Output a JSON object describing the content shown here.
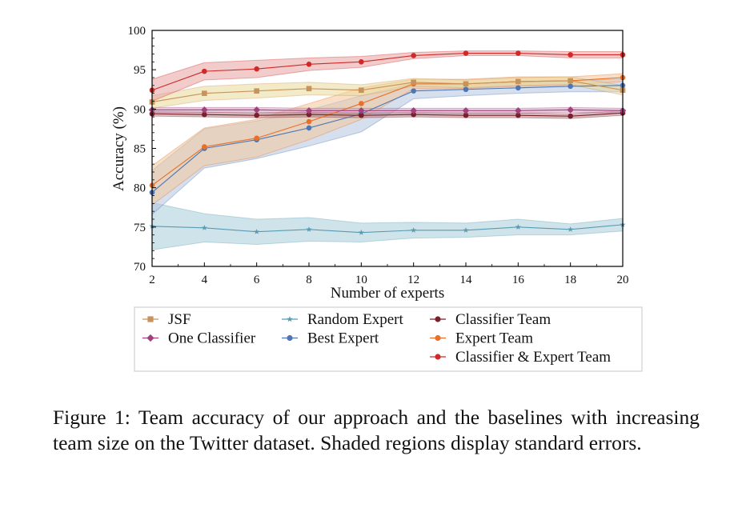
{
  "caption": "Figure 1: Team accuracy of our approach and the baselines with increasing team size on the Twitter dataset. Shaded regions display standard errors.",
  "chart_data": {
    "type": "line",
    "xlabel": "Number of experts",
    "ylabel": "Accuracy (%)",
    "xlim": [
      2,
      20
    ],
    "ylim": [
      70,
      100
    ],
    "x": [
      2,
      4,
      6,
      8,
      10,
      12,
      14,
      16,
      18,
      20
    ],
    "xticks": [
      "2",
      "4",
      "6",
      "8",
      "10",
      "12",
      "14",
      "16",
      "18",
      "20"
    ],
    "yticks": [
      "70",
      "75",
      "80",
      "85",
      "90",
      "95",
      "100"
    ],
    "grid": false,
    "legend_position": "below plot",
    "series": [
      {
        "name": "JSF",
        "color": "#c8935a",
        "fill": "#e9d99a",
        "marker": "square",
        "values": [
          90.9,
          92.0,
          92.3,
          92.6,
          92.4,
          93.4,
          93.2,
          93.5,
          93.6,
          92.4
        ],
        "err": [
          0.8,
          0.9,
          0.9,
          0.8,
          0.7,
          0.5,
          0.5,
          0.5,
          0.5,
          0.6
        ]
      },
      {
        "name": "One Classifier",
        "color": "#a0417c",
        "fill": "#d9a7c7",
        "marker": "diamond",
        "values": [
          89.9,
          89.9,
          89.9,
          89.8,
          89.8,
          89.8,
          89.8,
          89.8,
          89.9,
          89.8
        ],
        "err": [
          0.3,
          0.3,
          0.3,
          0.3,
          0.3,
          0.3,
          0.3,
          0.3,
          0.3,
          0.3
        ]
      },
      {
        "name": "Random Expert",
        "color": "#5a9ab0",
        "fill": "#a8cdd8",
        "marker": "star",
        "values": [
          75.1,
          74.9,
          74.4,
          74.7,
          74.3,
          74.6,
          74.6,
          75.0,
          74.7,
          75.3
        ],
        "err": [
          3.0,
          1.8,
          1.6,
          1.5,
          1.2,
          1.0,
          0.9,
          1.0,
          0.7,
          0.8
        ]
      },
      {
        "name": "Best Expert",
        "color": "#4f76b4",
        "fill": "#b3c5de",
        "marker": "circle",
        "values": [
          79.4,
          85.0,
          86.1,
          87.6,
          89.4,
          92.3,
          92.5,
          92.7,
          92.9,
          93.0
        ],
        "err": [
          2.8,
          2.5,
          2.4,
          2.3,
          2.3,
          1.0,
          0.8,
          0.7,
          0.7,
          0.8
        ]
      },
      {
        "name": "Classifier Team",
        "color": "#7a1f2b",
        "fill": "#b78a8a",
        "marker": "circle",
        "values": [
          89.4,
          89.3,
          89.2,
          89.3,
          89.2,
          89.3,
          89.2,
          89.2,
          89.1,
          89.5
        ],
        "err": [
          0.3,
          0.3,
          0.3,
          0.3,
          0.3,
          0.3,
          0.3,
          0.3,
          0.3,
          0.3
        ]
      },
      {
        "name": "Expert Team",
        "color": "#e8702a",
        "fill": "#f2c79a",
        "marker": "circle",
        "values": [
          80.3,
          85.2,
          86.3,
          88.4,
          90.7,
          93.2,
          93.2,
          93.5,
          93.6,
          94.0
        ],
        "err": [
          2.5,
          2.4,
          2.4,
          2.3,
          2.0,
          0.6,
          0.6,
          0.6,
          0.5,
          0.5
        ]
      },
      {
        "name": "Classifier & Expert Team",
        "color": "#cf2a2a",
        "fill": "#e7a0a0",
        "marker": "circle",
        "values": [
          92.4,
          94.8,
          95.1,
          95.7,
          96.0,
          96.8,
          97.1,
          97.1,
          96.9,
          96.9
        ],
        "err": [
          1.4,
          1.1,
          1.1,
          0.8,
          0.7,
          0.4,
          0.3,
          0.3,
          0.4,
          0.4
        ]
      }
    ]
  }
}
